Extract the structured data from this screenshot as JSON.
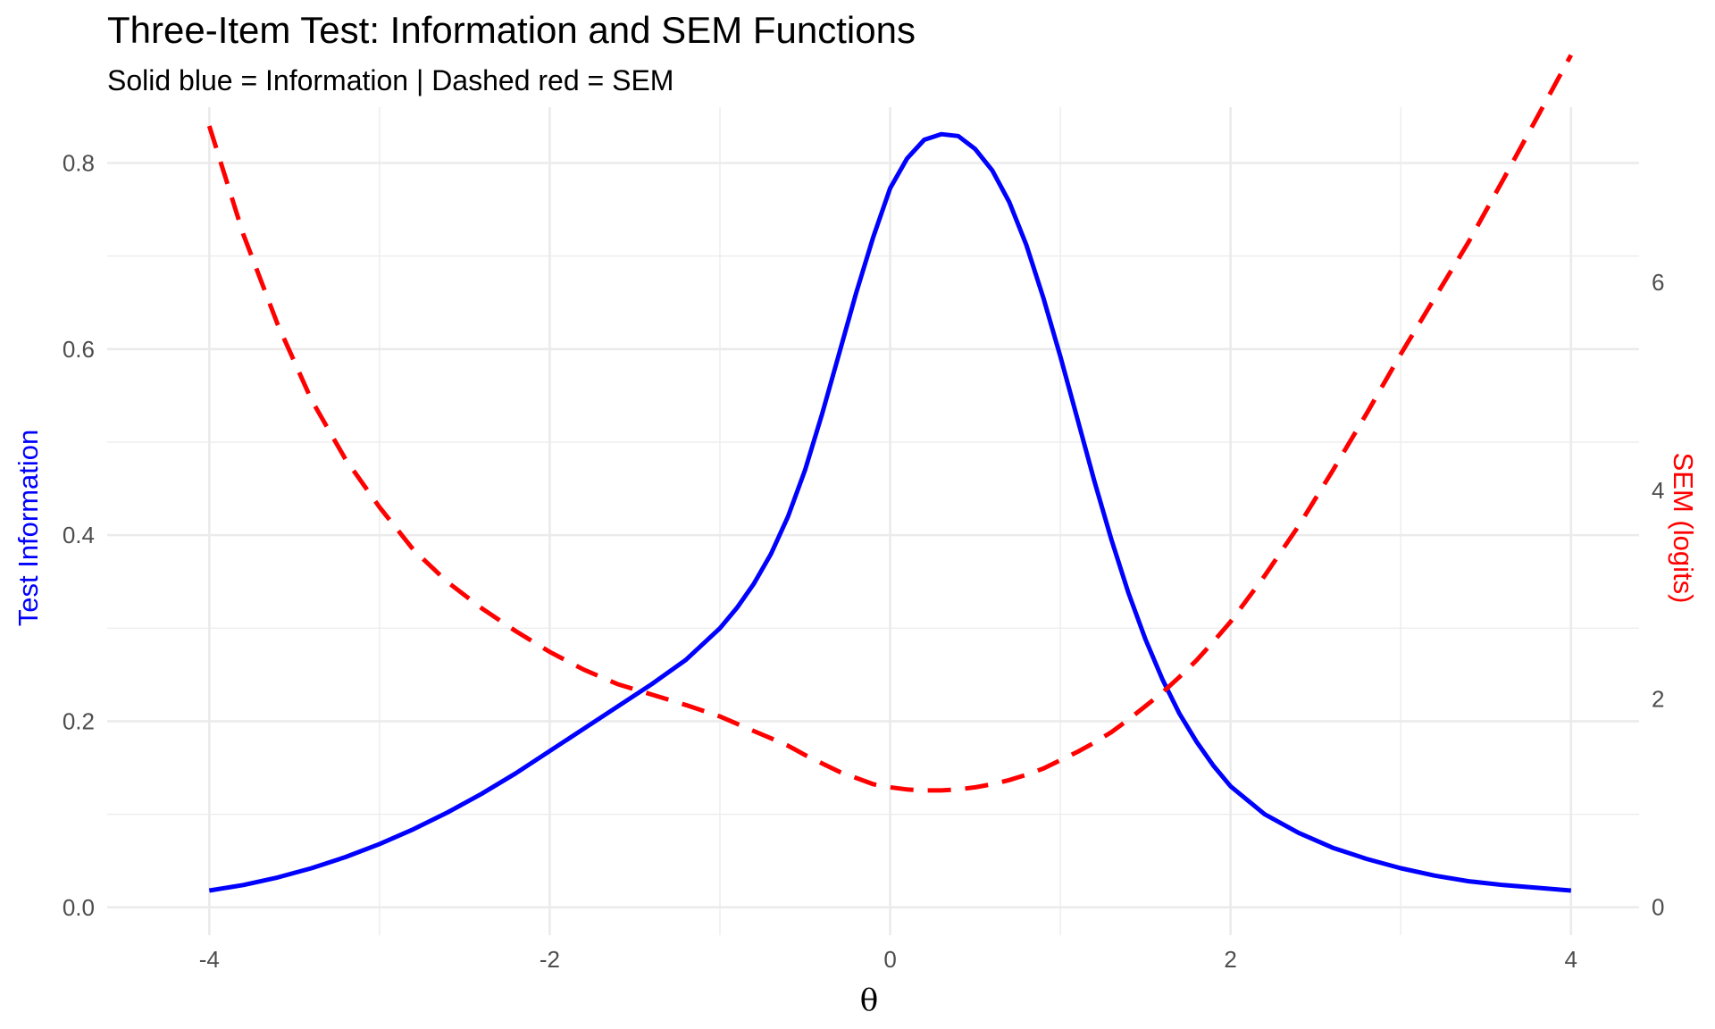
{
  "chart_data": {
    "type": "line",
    "title": "Three-Item Test: Information and SEM Functions",
    "subtitle": "Solid blue = Information | Dashed red = SEM",
    "xlabel": "θ",
    "ylabel_left": "Test Information",
    "ylabel_right": "SEM (logits)",
    "xlim": [
      -4.6,
      4.4
    ],
    "ylim_left": [
      -0.03,
      0.86
    ],
    "ylim_right": [
      -0.27,
      7.68
    ],
    "x_ticks": [
      -4,
      -2,
      0,
      2,
      4
    ],
    "x_tick_labels": [
      "-4",
      "-2",
      "0",
      "2",
      "4"
    ],
    "y_left_ticks": [
      0.0,
      0.2,
      0.4,
      0.6,
      0.8
    ],
    "y_left_tick_labels": [
      "0.0",
      "0.2",
      "0.4",
      "0.6",
      "0.8"
    ],
    "y_right_ticks": [
      0,
      2,
      4,
      6
    ],
    "y_right_tick_labels": [
      "0",
      "2",
      "4",
      "6"
    ],
    "grid": true,
    "legend": "none",
    "colors": {
      "information": "#0000ff",
      "sem": "#ff0000",
      "grid": "#ebebeb",
      "tick_text": "#4d4d4d"
    },
    "x": [
      -4.0,
      -3.8,
      -3.6,
      -3.4,
      -3.2,
      -3.0,
      -2.8,
      -2.6,
      -2.4,
      -2.2,
      -2.0,
      -1.8,
      -1.6,
      -1.4,
      -1.2,
      -1.0,
      -0.9,
      -0.8,
      -0.7,
      -0.6,
      -0.5,
      -0.4,
      -0.3,
      -0.2,
      -0.1,
      0.0,
      0.1,
      0.2,
      0.3,
      0.4,
      0.5,
      0.6,
      0.7,
      0.8,
      0.9,
      1.0,
      1.1,
      1.2,
      1.3,
      1.4,
      1.5,
      1.6,
      1.7,
      1.8,
      1.9,
      2.0,
      2.2,
      2.4,
      2.6,
      2.8,
      3.0,
      3.2,
      3.4,
      3.6,
      3.8,
      4.0
    ],
    "series": [
      {
        "name": "Information",
        "axis": "left",
        "style": "solid",
        "values": [
          0.018,
          0.024,
          0.032,
          0.042,
          0.054,
          0.068,
          0.084,
          0.102,
          0.122,
          0.144,
          0.168,
          0.192,
          0.216,
          0.24,
          0.266,
          0.3,
          0.322,
          0.348,
          0.38,
          0.42,
          0.47,
          0.53,
          0.595,
          0.66,
          0.72,
          0.773,
          0.805,
          0.825,
          0.831,
          0.829,
          0.815,
          0.792,
          0.758,
          0.712,
          0.655,
          0.592,
          0.525,
          0.458,
          0.395,
          0.338,
          0.288,
          0.245,
          0.208,
          0.178,
          0.152,
          0.13,
          0.1,
          0.08,
          0.064,
          0.052,
          0.042,
          0.034,
          0.028,
          0.024,
          0.021,
          0.018
        ]
      },
      {
        "name": "SEM",
        "axis": "right",
        "style": "dashed",
        "values": [
          7.5,
          6.46,
          5.6,
          4.87,
          4.3,
          3.84,
          3.43,
          3.12,
          2.87,
          2.65,
          2.45,
          2.28,
          2.14,
          2.04,
          1.94,
          1.83,
          1.76,
          1.69,
          1.62,
          1.55,
          1.46,
          1.38,
          1.3,
          1.24,
          1.18,
          1.15,
          1.13,
          1.12,
          1.12,
          1.13,
          1.15,
          1.18,
          1.22,
          1.27,
          1.33,
          1.41,
          1.49,
          1.58,
          1.68,
          1.8,
          1.93,
          2.06,
          2.21,
          2.37,
          2.55,
          2.74,
          3.18,
          3.66,
          4.19,
          4.74,
          5.31,
          5.85,
          6.39,
          6.98,
          7.58,
          8.18
        ]
      }
    ]
  }
}
